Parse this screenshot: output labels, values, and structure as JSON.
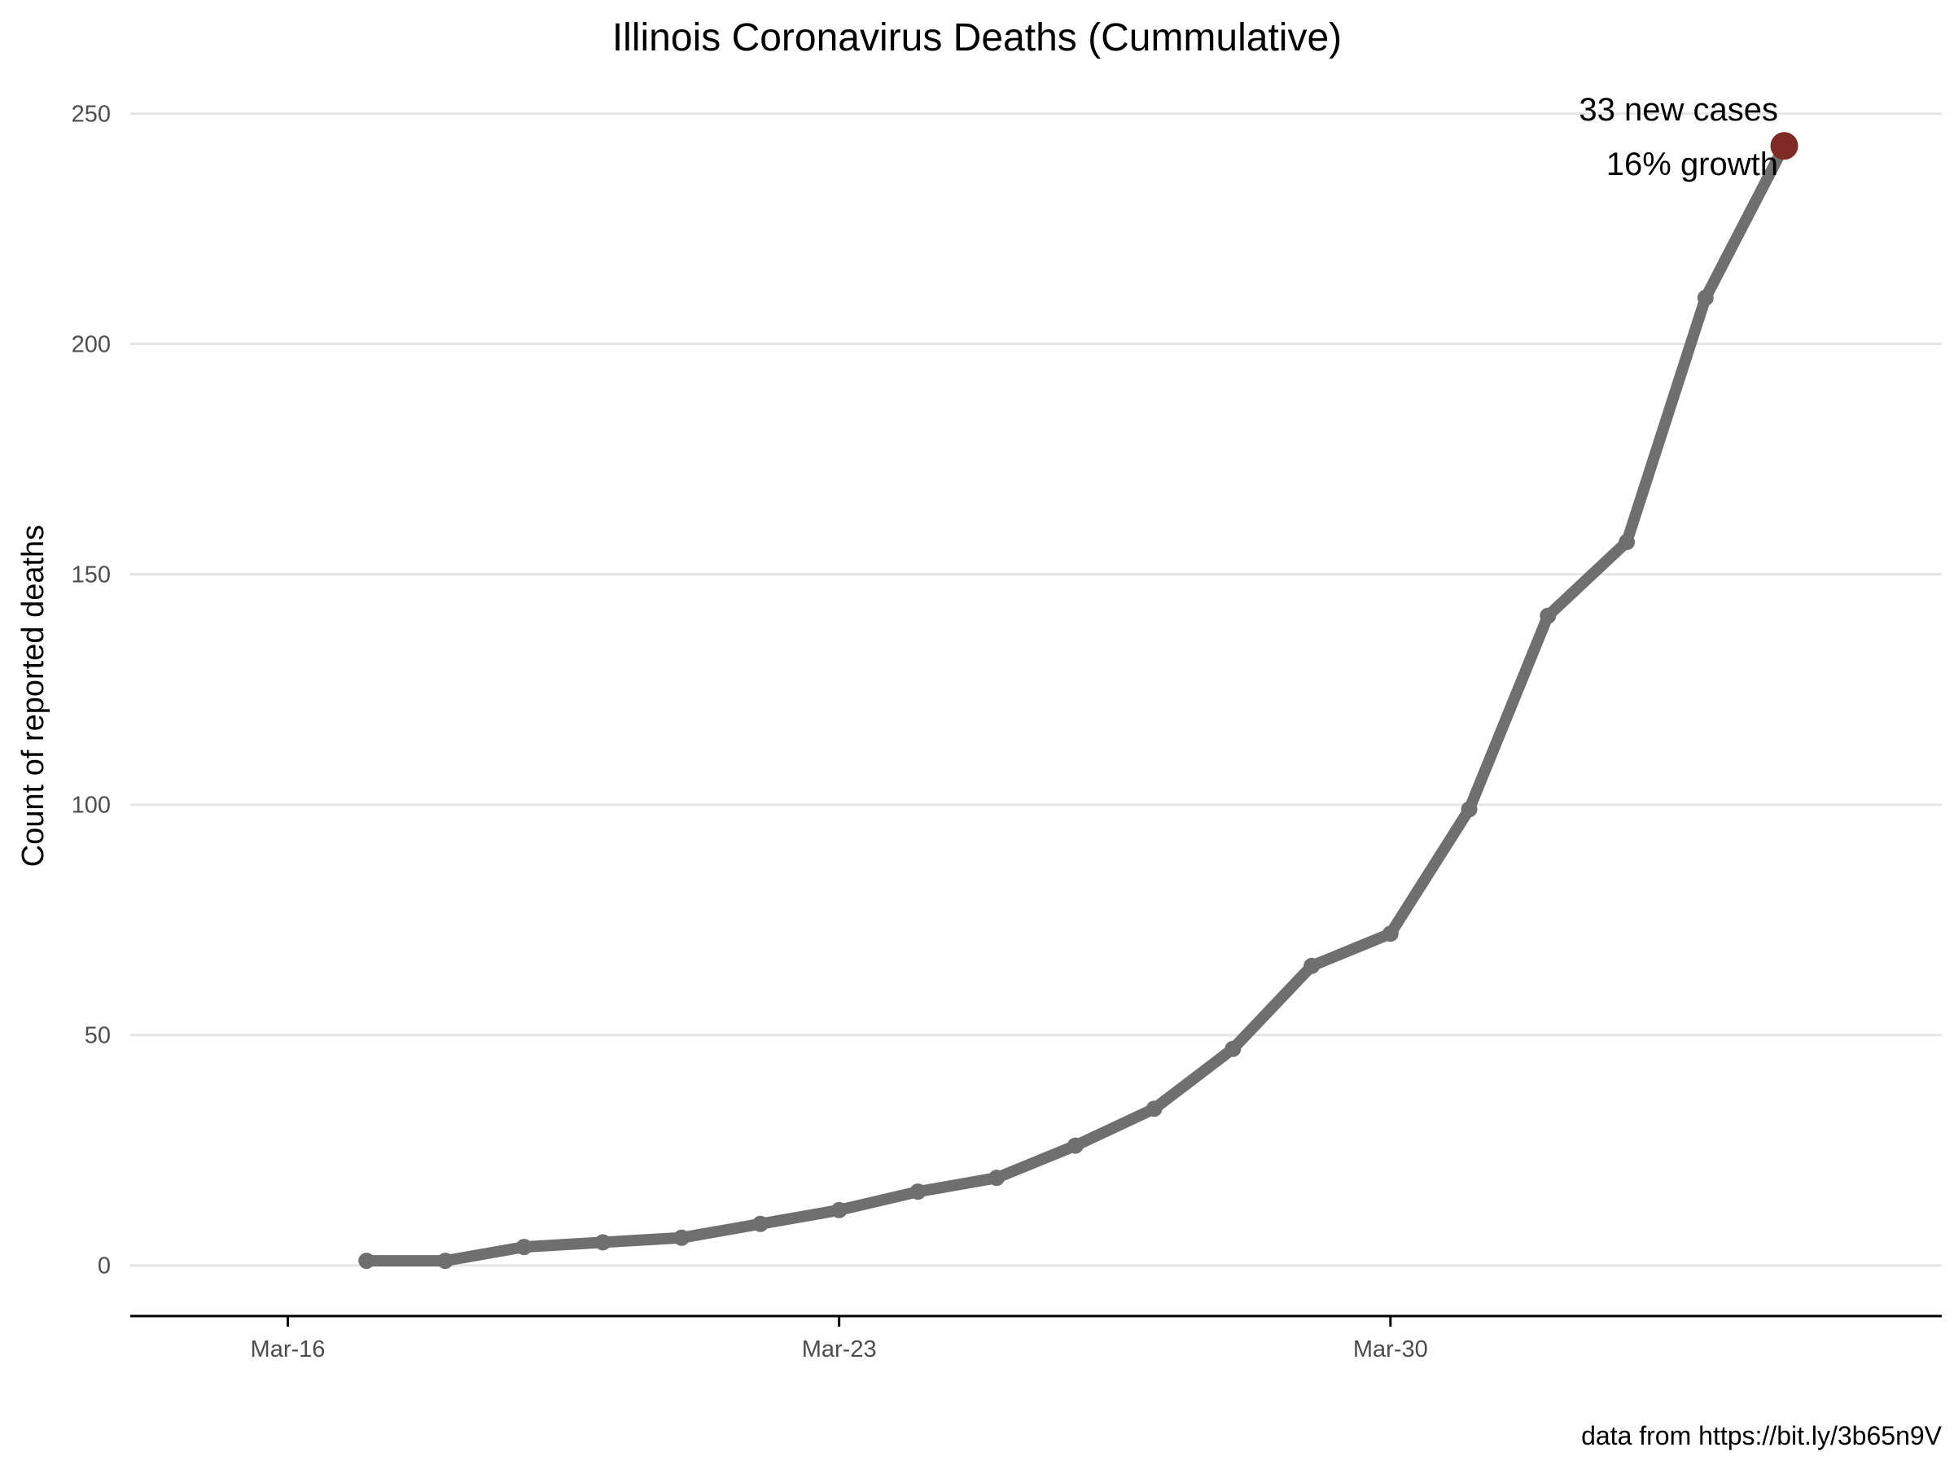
{
  "chart_data": {
    "type": "line",
    "title": "Illinois Coronavirus Deaths (Cummulative)",
    "xlabel": "",
    "ylabel": "Count of reported deaths",
    "caption": "data from https://bit.ly/3b65n9V",
    "x": [
      "Mar-17",
      "Mar-18",
      "Mar-19",
      "Mar-20",
      "Mar-21",
      "Mar-22",
      "Mar-23",
      "Mar-24",
      "Mar-25",
      "Mar-26",
      "Mar-27",
      "Mar-28",
      "Mar-29",
      "Mar-30",
      "Mar-31",
      "Apr-01",
      "Apr-02",
      "Apr-03",
      "Apr-04"
    ],
    "series": [
      {
        "values": [
          1,
          1,
          4,
          5,
          6,
          9,
          12,
          16,
          19,
          26,
          34,
          47,
          65,
          72,
          99,
          141,
          157,
          210,
          243
        ]
      }
    ],
    "x_ticks": [
      "Mar-16",
      "Mar-23",
      "Mar-30"
    ],
    "y_ticks": [
      0,
      50,
      100,
      150,
      200,
      250
    ],
    "xlim": [
      "Mar-14",
      "Apr-06"
    ],
    "ylim": [
      -11,
      257
    ],
    "grid": "horizontal",
    "annotation": {
      "line1": "33 new cases",
      "line2": "16% growth"
    },
    "colors": {
      "series": "#6f6f6f",
      "highlight": "#7f2a24",
      "grid": "#e5e5e5"
    }
  }
}
